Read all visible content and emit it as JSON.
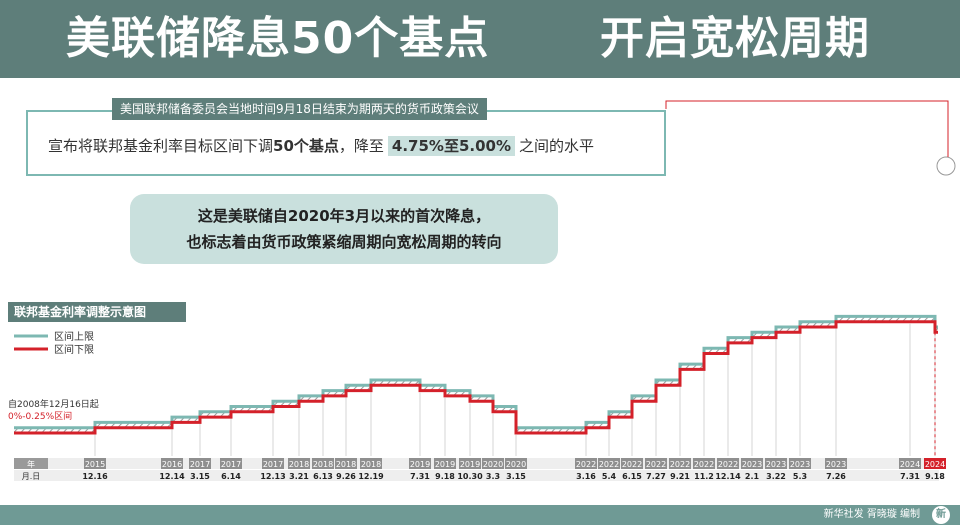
{
  "header": {
    "title_left": "美联储降息50个基点",
    "title_right": "开启宽松周期"
  },
  "announcement": {
    "tag": "美国联邦储备委员会当地时间9月18日结束为期两天的货币政策会议",
    "prefix": "宣布将联邦基金利率目标区间下调",
    "bp": "50个基点",
    "middle": "，降至",
    "range": "4.75%至5.00%",
    "suffix": "之间的水平"
  },
  "note": {
    "line1": "这是美联储自2020年3月以来的首次降息，",
    "line2": "也标志着由货币政策紧缩周期向宽松周期的转向"
  },
  "footer": {
    "credit": "新华社发 胥晓璇 编制",
    "logo_char": "新"
  },
  "colors": {
    "upper": "#7db8b2",
    "lower": "#d4212a",
    "accent": "#5e7e7a",
    "highlight": "#d4212a"
  },
  "chart_data": {
    "type": "line",
    "title": "联邦基金利率调整示意图",
    "legend": [
      "区间上限",
      "区间下限"
    ],
    "start_note": "自2008年12月16日起",
    "start_range": "0%-0.25%区间",
    "axis_corner": {
      "year_label": "年",
      "date_label": "月.日"
    },
    "changes": [
      {
        "year": "2015",
        "date": "12.16",
        "lower": 0.25,
        "upper": 0.5
      },
      {
        "year": "2016",
        "date": "12.14",
        "lower": 0.5,
        "upper": 0.75
      },
      {
        "year": "2017",
        "date": "3.15",
        "lower": 0.75,
        "upper": 1.0
      },
      {
        "year": "2017",
        "date": "6.14",
        "lower": 1.0,
        "upper": 1.25
      },
      {
        "year": "2017",
        "date": "12.13",
        "lower": 1.25,
        "upper": 1.5
      },
      {
        "year": "2018",
        "date": "3.21",
        "lower": 1.5,
        "upper": 1.75
      },
      {
        "year": "2018",
        "date": "6.13",
        "lower": 1.75,
        "upper": 2.0
      },
      {
        "year": "2018",
        "date": "9.26",
        "lower": 2.0,
        "upper": 2.25
      },
      {
        "year": "2018",
        "date": "12.19",
        "lower": 2.25,
        "upper": 2.5
      },
      {
        "year": "2019",
        "date": "7.31",
        "lower": 2.0,
        "upper": 2.25
      },
      {
        "year": "2019",
        "date": "9.18",
        "lower": 1.75,
        "upper": 2.0
      },
      {
        "year": "2019",
        "date": "10.30",
        "lower": 1.5,
        "upper": 1.75
      },
      {
        "year": "2020",
        "date": "3.3",
        "lower": 1.0,
        "upper": 1.25
      },
      {
        "year": "2020",
        "date": "3.15",
        "lower": 0.0,
        "upper": 0.25
      },
      {
        "year": "2022",
        "date": "3.16",
        "lower": 0.25,
        "upper": 0.5
      },
      {
        "year": "2022",
        "date": "5.4",
        "lower": 0.75,
        "upper": 1.0
      },
      {
        "year": "2022",
        "date": "6.15",
        "lower": 1.5,
        "upper": 1.75
      },
      {
        "year": "2022",
        "date": "7.27",
        "lower": 2.25,
        "upper": 2.5
      },
      {
        "year": "2022",
        "date": "9.21",
        "lower": 3.0,
        "upper": 3.25
      },
      {
        "year": "2022",
        "date": "11.2",
        "lower": 3.75,
        "upper": 4.0
      },
      {
        "year": "2022",
        "date": "12.14",
        "lower": 4.25,
        "upper": 4.5
      },
      {
        "year": "2023",
        "date": "2.1",
        "lower": 4.5,
        "upper": 4.75
      },
      {
        "year": "2023",
        "date": "3.22",
        "lower": 4.75,
        "upper": 5.0
      },
      {
        "year": "2023",
        "date": "5.3",
        "lower": 5.0,
        "upper": 5.25
      },
      {
        "year": "2023",
        "date": "7.26",
        "lower": 5.25,
        "upper": 5.5
      },
      {
        "year": "2024",
        "date": "7.31",
        "lower": 5.25,
        "upper": 5.5
      },
      {
        "year": "2024",
        "date": "9.18",
        "lower": 4.75,
        "upper": 5.0
      }
    ]
  }
}
